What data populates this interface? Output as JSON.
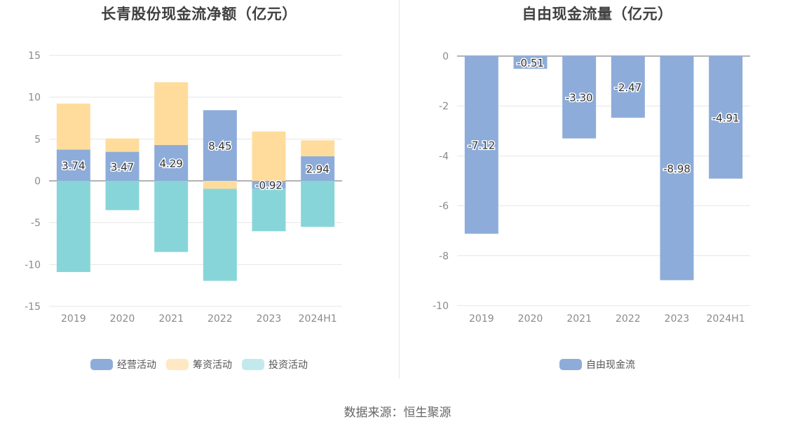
{
  "source_text": "数据来源：恒生聚源",
  "colors": {
    "operating": "#8eacd9",
    "financing": "#ffdc9c",
    "investing": "#87d5d9",
    "free_cash_flow": "#8eacd9",
    "grid": "#e6e6e6",
    "zero_line": "#666666"
  },
  "chart_data": [
    {
      "type": "bar",
      "stacked": true,
      "title": "长青股份现金流净额（亿元）",
      "categories": [
        "2019",
        "2020",
        "2021",
        "2022",
        "2023",
        "2024H1"
      ],
      "series": [
        {
          "name": "经营活动",
          "values": [
            3.74,
            3.47,
            4.29,
            8.45,
            -0.92,
            2.94
          ]
        },
        {
          "name": "筹资活动",
          "values": [
            5.5,
            1.6,
            7.5,
            -0.95,
            5.9,
            1.9
          ]
        },
        {
          "name": "投资活动",
          "values": [
            -10.9,
            -3.5,
            -8.5,
            -11.0,
            -5.1,
            -5.5
          ]
        }
      ],
      "data_labels": [
        "3.74",
        "3.47",
        "4.29",
        "8.45",
        "-0.92",
        "2.94"
      ],
      "ylim": [
        -15,
        15
      ],
      "yticks": [
        "15",
        "10",
        "5",
        "0",
        "-5",
        "-10",
        "-15"
      ],
      "grid": true,
      "legend_position": "bottom"
    },
    {
      "type": "bar",
      "title": "自由现金流量（亿元）",
      "categories": [
        "2019",
        "2020",
        "2021",
        "2022",
        "2023",
        "2024H1"
      ],
      "series": [
        {
          "name": "自由现金流",
          "values": [
            -7.12,
            -0.51,
            -3.3,
            -2.47,
            -8.98,
            -4.91
          ]
        }
      ],
      "data_labels": [
        "-7.12",
        "-0.51",
        "-3.30",
        "-2.47",
        "-8.98",
        "-4.91"
      ],
      "ylim": [
        -10,
        0
      ],
      "yticks": [
        "0",
        "-2",
        "-4",
        "-6",
        "-8",
        "-10"
      ],
      "grid": true,
      "legend_position": "bottom"
    }
  ]
}
